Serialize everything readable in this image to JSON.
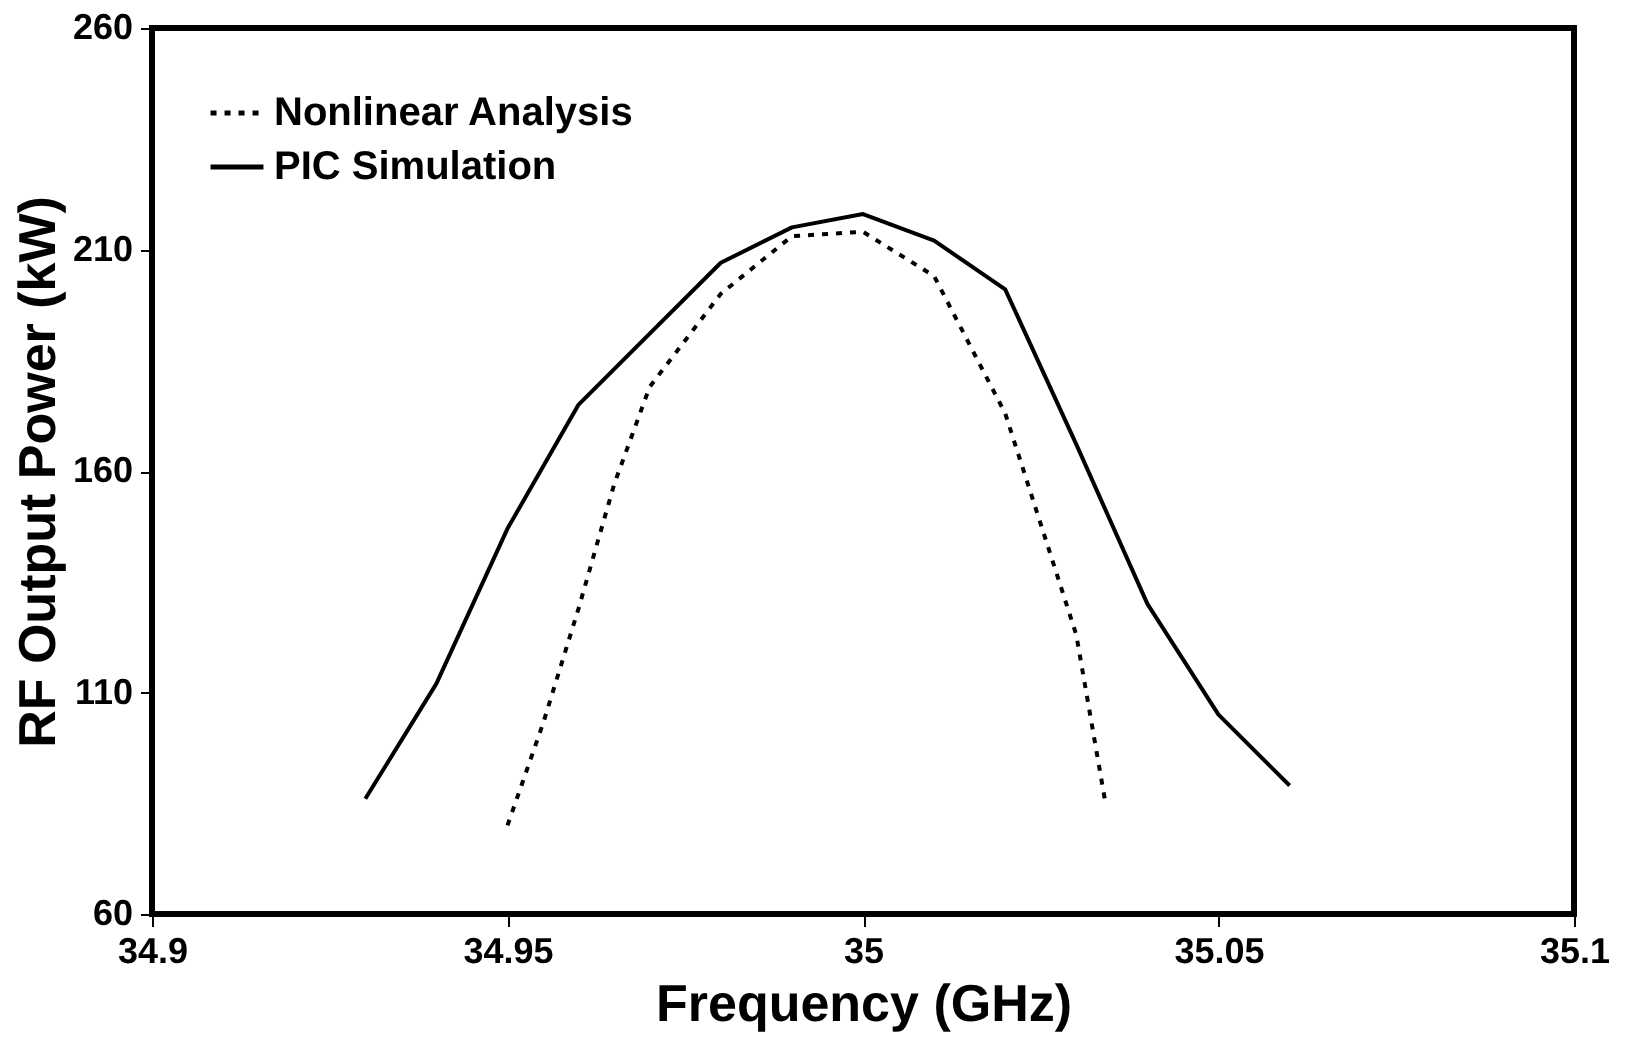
{
  "chart_data": {
    "type": "line",
    "xlabel": "Frequency (GHz)",
    "ylabel": "RF Output Power (kW)",
    "xlim": [
      34.9,
      35.1
    ],
    "xticks": [
      34.9,
      34.95,
      35,
      35.05,
      35.1
    ],
    "ylim": [
      60,
      260
    ],
    "yticks": [
      60,
      110,
      160,
      210,
      260
    ],
    "grid": false,
    "legend": "top left",
    "marker": "none",
    "series": [
      {
        "name": "Nonlinear Analysis",
        "color": "#000000",
        "line_style": "dotted",
        "x": [
          34.95,
          34.955,
          34.96,
          34.965,
          34.97,
          34.98,
          34.99,
          35.0,
          35.01,
          35.02,
          35.025,
          35.03,
          35.034
        ],
        "values": [
          80,
          103,
          129,
          157,
          179,
          200,
          213,
          214,
          204,
          173,
          148,
          123,
          86
        ]
      },
      {
        "name": "PIC Simulation",
        "color": "#000000",
        "line_style": "solid",
        "x": [
          34.93,
          34.94,
          34.95,
          34.96,
          34.97,
          34.98,
          34.99,
          35.0,
          35.01,
          35.02,
          35.03,
          35.04,
          35.05,
          35.06
        ],
        "values": [
          86,
          112,
          147,
          175,
          191,
          207,
          215,
          218,
          212,
          201,
          166,
          130,
          105,
          89
        ]
      }
    ]
  }
}
